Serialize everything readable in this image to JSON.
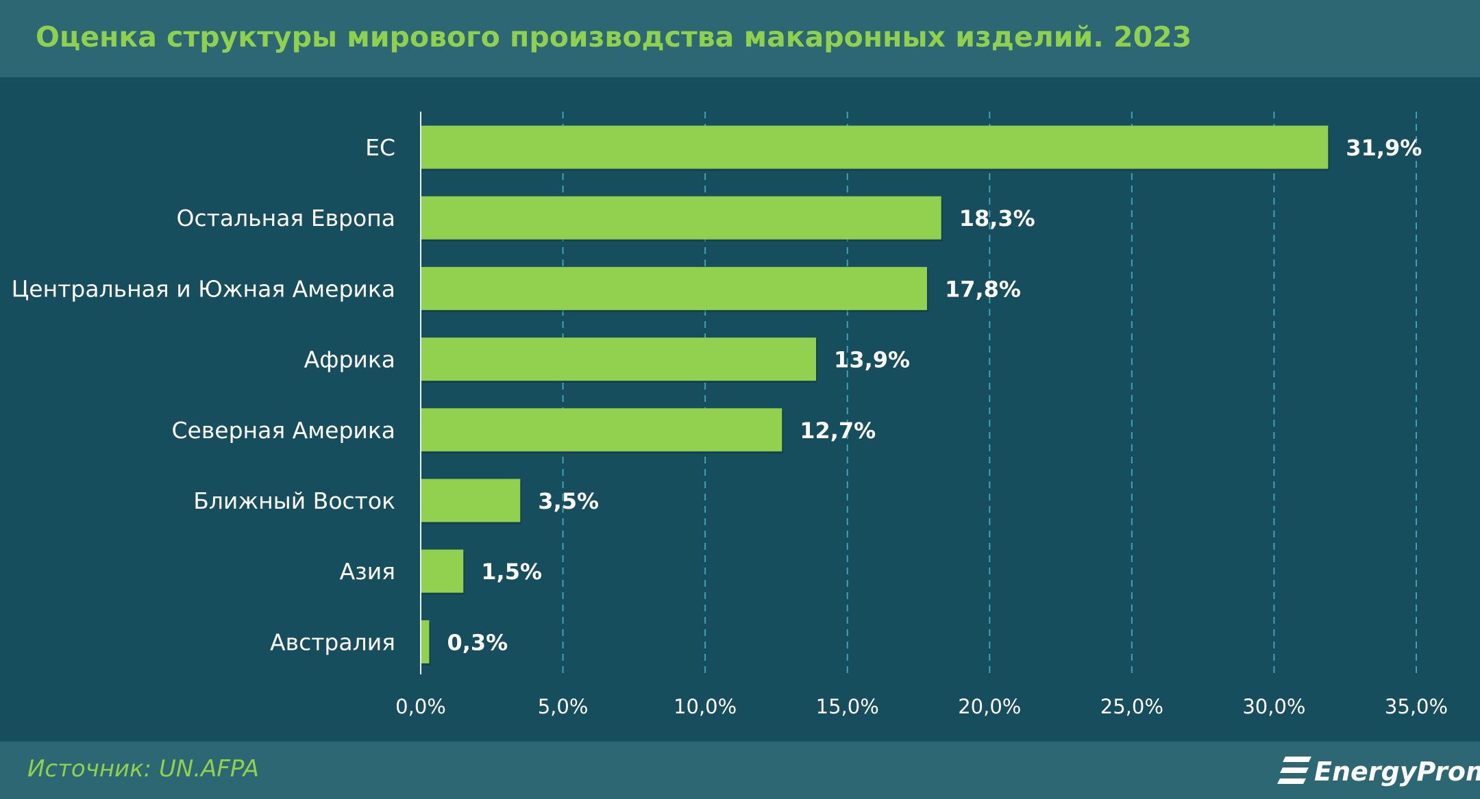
{
  "chart_data": {
    "type": "bar",
    "orientation": "horizontal",
    "title": "Оценка структуры мирового производства макаронных изделий. 2023",
    "categories": [
      "ЕС",
      "Остальная Европа",
      "Центральная и Южная Америка",
      "Африка",
      "Северная Америка",
      "Ближный Восток",
      "Азия",
      "Австралия"
    ],
    "values": [
      31.9,
      18.3,
      17.8,
      13.9,
      12.7,
      3.5,
      1.5,
      0.3
    ],
    "value_labels": [
      "31,9%",
      "18,3%",
      "17,8%",
      "13,9%",
      "12,7%",
      "3,5%",
      "1,5%",
      "0,3%"
    ],
    "xlim": [
      0,
      35
    ],
    "x_ticks": [
      0,
      5,
      10,
      15,
      20,
      25,
      30,
      35
    ],
    "x_tick_labels": [
      "0,0%",
      "5,0%",
      "10,0%",
      "15,0%",
      "20,0%",
      "25,0%",
      "30,0%",
      "35,0%"
    ],
    "grid": "vertical dashed",
    "bar_color": "#92d050",
    "background_color": "#174e5e"
  },
  "source": "Источник: UN.AFPA",
  "brand": "EnergyProm",
  "colors": {
    "accent": "#8fd14f",
    "header": "#2e6774",
    "grid": "#3fa3b8"
  }
}
